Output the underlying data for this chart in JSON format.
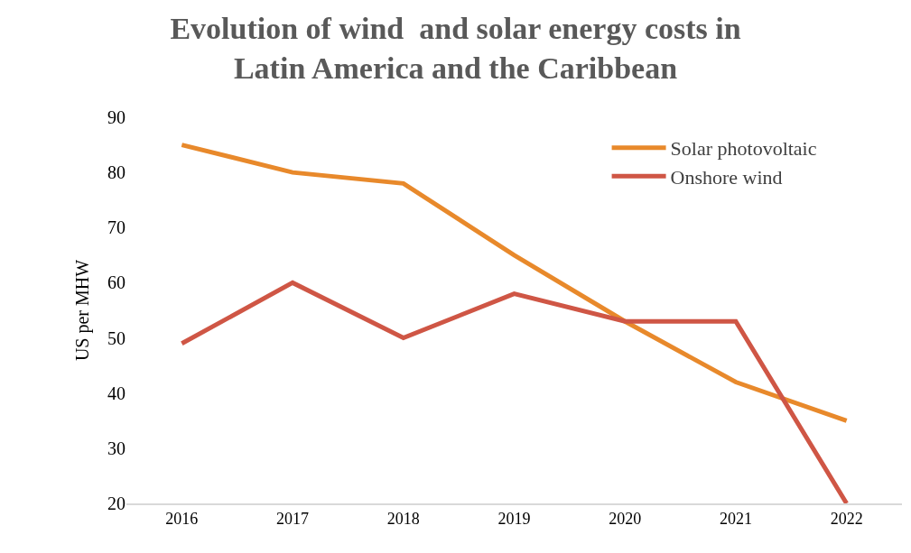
{
  "chart_data": {
    "type": "line",
    "title": "Evolution of wind  and solar energy costs in\nLatin America and the Caribbean",
    "ylabel": "US per MHW",
    "categories": [
      "2016",
      "2017",
      "2018",
      "2019",
      "2020",
      "2021",
      "2022"
    ],
    "series": [
      {
        "name": "Solar photovoltaic",
        "color": "#e8892b",
        "values": [
          85,
          80,
          78,
          65,
          53,
          42,
          35
        ]
      },
      {
        "name": "Onshore wind",
        "color": "#cf5645",
        "values": [
          49,
          60,
          50,
          58,
          53,
          53,
          20
        ]
      }
    ],
    "ylim": [
      20,
      90
    ],
    "yticks": [
      20,
      30,
      40,
      50,
      60,
      70,
      80,
      90
    ],
    "grid": false,
    "legend": "top right",
    "marker": "none",
    "line_style": "solid"
  }
}
